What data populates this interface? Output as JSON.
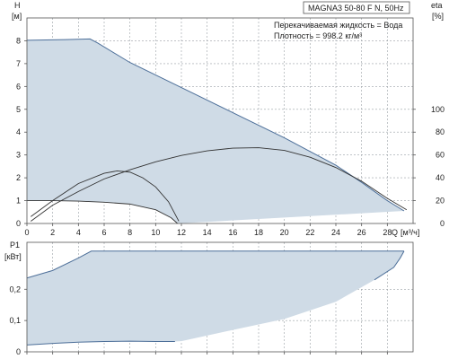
{
  "header": {
    "title": "MAGNA3 50-80 F N, 50Hz",
    "liquid": "Перекачиваемая жидкость = Вода",
    "density": "Плотность = 998.2 кг/м³"
  },
  "chart_data": [
    {
      "type": "area",
      "panel": "head",
      "ylabel": "H",
      "yunit": "[м]",
      "y2label": "eta",
      "y2unit": "[%]",
      "xlabel": "Q",
      "xunit": "[м³/ч]",
      "xlim": [
        0,
        30
      ],
      "ylim": [
        0,
        9
      ],
      "y2lim": [
        0,
        180
      ],
      "x_ticks": [
        0,
        2,
        4,
        6,
        8,
        10,
        12,
        14,
        16,
        18,
        20,
        22,
        24,
        26,
        28
      ],
      "y_ticks": [
        0,
        1,
        2,
        3,
        4,
        5,
        6,
        7,
        8
      ],
      "y2_ticks": [
        0,
        20,
        40,
        60,
        80,
        100
      ],
      "grid": true,
      "series": [
        {
          "role": "max-curve",
          "x": [
            0,
            3,
            4.9,
            5.5,
            8,
            12,
            16,
            20,
            24,
            26,
            28,
            29.3
          ],
          "y": [
            8.02,
            8.05,
            8.08,
            7.9,
            7.05,
            5.95,
            4.85,
            3.75,
            2.55,
            1.8,
            1.0,
            0.55
          ]
        },
        {
          "role": "min-curve",
          "x": [
            0,
            2,
            4,
            6,
            8,
            10,
            11.2,
            11.7
          ],
          "y": [
            1.0,
            1.0,
            0.98,
            0.93,
            0.85,
            0.6,
            0.25,
            0
          ]
        },
        {
          "role": "efficiency-small",
          "x": [
            0.3,
            2,
            4,
            6,
            7,
            8,
            9,
            10,
            11,
            11.8
          ],
          "y": [
            0.3,
            1.0,
            1.75,
            2.2,
            2.3,
            2.25,
            2.0,
            1.6,
            0.95,
            0.1
          ]
        },
        {
          "role": "efficiency-large",
          "x": [
            0.3,
            2,
            4,
            6,
            8,
            10,
            12,
            14,
            16,
            18,
            20,
            22,
            24,
            26,
            28,
            29.5
          ],
          "y": [
            0.1,
            0.8,
            1.4,
            1.95,
            2.35,
            2.7,
            2.98,
            3.18,
            3.3,
            3.32,
            3.2,
            2.9,
            2.45,
            1.85,
            1.1,
            0.6
          ]
        }
      ]
    },
    {
      "type": "area",
      "panel": "power",
      "ylabel": "P1",
      "yunit": "[кВт]",
      "xlim": [
        0,
        30
      ],
      "ylim": [
        0,
        0.35
      ],
      "y_ticks": [
        0,
        0.1,
        0.2
      ],
      "y_tick_labels": [
        "0",
        "0,1",
        "0,2"
      ],
      "x_ticks": [
        0,
        2,
        4,
        6,
        8,
        10,
        12,
        14,
        16,
        18,
        20,
        22,
        24,
        26,
        28
      ],
      "grid": true,
      "series": [
        {
          "role": "max-power",
          "x": [
            0,
            2,
            4,
            5,
            6,
            10,
            16,
            22,
            27,
            29.3
          ],
          "y": [
            0.236,
            0.26,
            0.3,
            0.322,
            0.322,
            0.322,
            0.322,
            0.322,
            0.322,
            0.322
          ]
        },
        {
          "role": "power-right-edge",
          "x": [
            29.3,
            29,
            28.5,
            27
          ],
          "y": [
            0.322,
            0.3,
            0.27,
            0.23
          ]
        },
        {
          "role": "min-power",
          "x": [
            0,
            2,
            4,
            6,
            8,
            10,
            11.5
          ],
          "y": [
            0.022,
            0.027,
            0.031,
            0.033,
            0.034,
            0.033,
            0.033
          ]
        }
      ]
    }
  ]
}
